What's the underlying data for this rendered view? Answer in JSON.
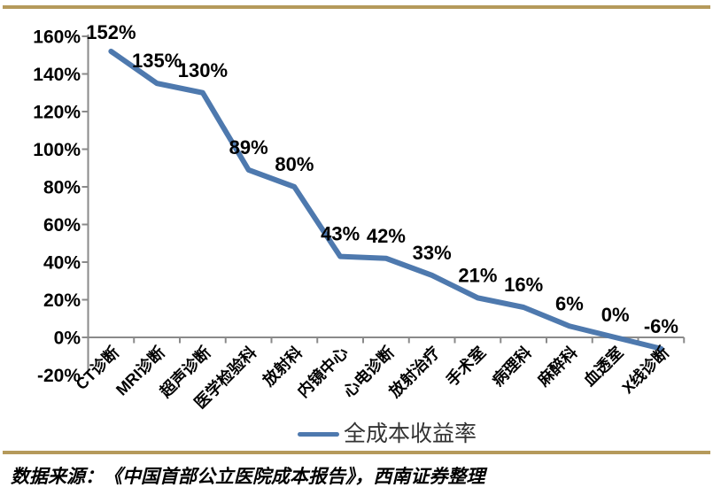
{
  "chart_data": {
    "type": "line",
    "title": "",
    "categories": [
      "CT诊断",
      "MRI诊断",
      "超声诊断",
      "医学检验科",
      "放射科",
      "内镜中心",
      "心电诊断",
      "放射治疗",
      "手术室",
      "病理科",
      "麻醉科",
      "血透室",
      "X线诊断"
    ],
    "series": [
      {
        "name": "全成本收益率",
        "values": [
          152,
          135,
          130,
          89,
          80,
          43,
          42,
          33,
          21,
          16,
          6,
          0,
          -6
        ]
      }
    ],
    "data_labels": [
      "152%",
      "135%",
      "130%",
      "89%",
      "80%",
      "43%",
      "42%",
      "33%",
      "21%",
      "16%",
      "6%",
      "0%",
      "-6%"
    ],
    "xlabel": "",
    "ylabel": "",
    "ylim": [
      -20,
      160
    ],
    "ytick_step": 20,
    "ytick_format": "percent",
    "grid": false,
    "legend_position": "bottom"
  },
  "legend": {
    "label": "全成本收益率"
  },
  "source_note": "数据来源：《中国首部公立医院成本报告》，西南证券整理",
  "colors": {
    "series_line": "#4E79AE",
    "divider_rule": "#B59A5B",
    "axis": "#8A8A8A",
    "text": "#000000",
    "legend_text": "#333333"
  }
}
